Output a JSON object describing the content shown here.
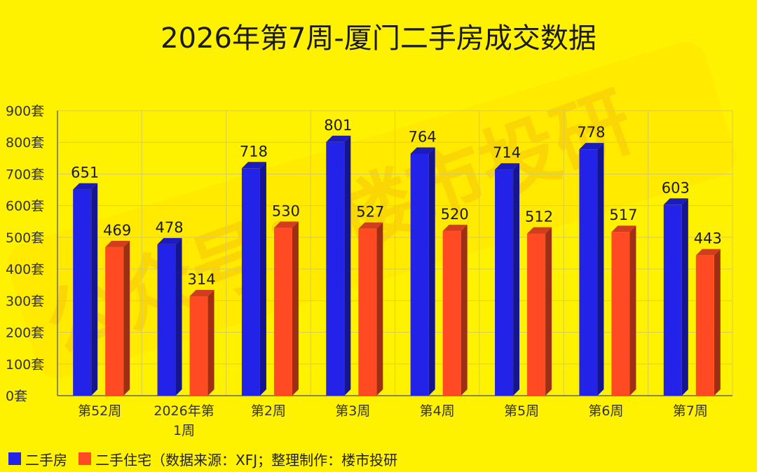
{
  "title": "2026年第7周-厦门二手房成交数据",
  "chart_data": {
    "type": "bar",
    "title": "2026年第7周-厦门二手房成交数据",
    "categories": [
      "第52周",
      "2026年第1周",
      "第2周",
      "第3周",
      "第4周",
      "第5周",
      "第6周",
      "第7周"
    ],
    "series": [
      {
        "name": "二手房",
        "values": [
          651,
          478,
          718,
          801,
          764,
          714,
          778,
          603
        ],
        "color": "#2222e8"
      },
      {
        "name": "二手住宅",
        "values": [
          469,
          314,
          530,
          527,
          520,
          512,
          517,
          443
        ],
        "color": "#ff4a24"
      }
    ],
    "y_ticks": [
      "0套",
      "100套",
      "200套",
      "300套",
      "400套",
      "500套",
      "600套",
      "700套",
      "800套",
      "900套"
    ],
    "ylim": [
      0,
      900
    ],
    "grid": true,
    "legend_position": "bottom-left"
  },
  "legend": {
    "series1": "二手房",
    "series2": "二手住宅",
    "note": "（数据来源：XFJ；整理制作：楼市投研"
  },
  "watermark": "公众号：楼市投研",
  "colors": {
    "background": "#fff200",
    "series1": "#2222e8",
    "series2": "#ff4a24"
  }
}
